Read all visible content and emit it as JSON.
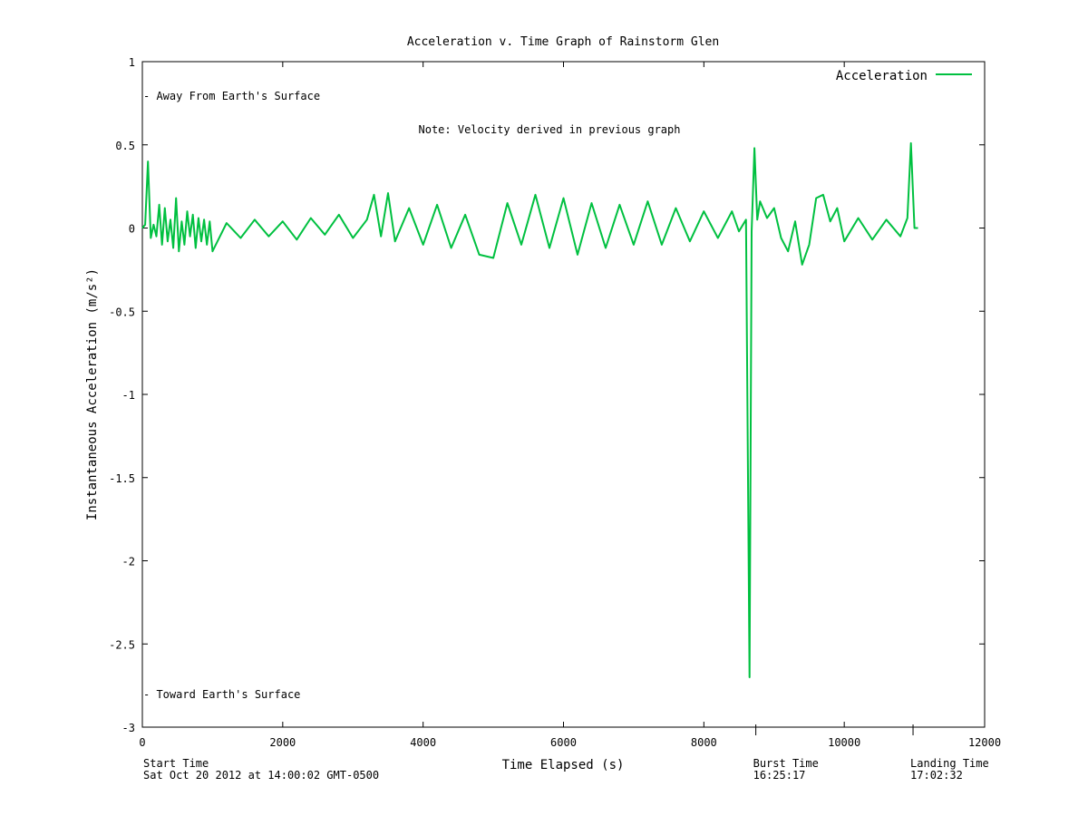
{
  "chart_data": {
    "type": "line",
    "title": "Acceleration v. Time Graph of Rainstorm Glen",
    "xlabel": "Time Elapsed (s)",
    "ylabel": "Instantaneous Acceleration (m/s²)",
    "xlim": [
      0,
      12000
    ],
    "ylim": [
      -3,
      1
    ],
    "x_ticks": [
      0,
      2000,
      4000,
      6000,
      8000,
      10000,
      12000
    ],
    "x_tick_labels": [
      "0",
      "2000",
      "4000",
      "6000",
      "8000",
      "10000",
      "12000"
    ],
    "y_ticks": [
      -3,
      -2.5,
      -2,
      -1.5,
      -1,
      -0.5,
      0,
      0.5,
      1
    ],
    "y_tick_labels": [
      "-3",
      "-2.5",
      "-2",
      "-1.5",
      "-1",
      "-0.5",
      "0",
      "0.5",
      "1"
    ],
    "grid": false,
    "legend": "top-right",
    "series_color": "#00c040",
    "series": [
      {
        "name": "Acceleration",
        "x": [
          0,
          40,
          80,
          120,
          160,
          200,
          240,
          280,
          320,
          360,
          400,
          440,
          480,
          520,
          560,
          600,
          640,
          680,
          720,
          760,
          800,
          840,
          880,
          920,
          960,
          1000,
          1200,
          1400,
          1600,
          1800,
          2000,
          2200,
          2400,
          2600,
          2800,
          3000,
          3200,
          3300,
          3400,
          3500,
          3600,
          3800,
          4000,
          4200,
          4400,
          4600,
          4800,
          5000,
          5200,
          5400,
          5600,
          5800,
          6000,
          6200,
          6400,
          6600,
          6800,
          7000,
          7200,
          7400,
          7600,
          7800,
          8000,
          8200,
          8400,
          8500,
          8600,
          8650,
          8680,
          8720,
          8760,
          8800,
          8900,
          9000,
          9100,
          9200,
          9300,
          9400,
          9500,
          9600,
          9700,
          9800,
          9900,
          10000,
          10200,
          10400,
          10600,
          10800,
          10900,
          10950,
          11000,
          11050
        ],
        "values": [
          0,
          0.02,
          0.4,
          -0.06,
          0.02,
          -0.05,
          0.14,
          -0.1,
          0.12,
          -0.08,
          0.05,
          -0.12,
          0.18,
          -0.14,
          0.04,
          -0.1,
          0.1,
          -0.05,
          0.08,
          -0.12,
          0.06,
          -0.08,
          0.05,
          -0.1,
          0.04,
          -0.14,
          0.03,
          -0.06,
          0.05,
          -0.05,
          0.04,
          -0.07,
          0.06,
          -0.04,
          0.08,
          -0.06,
          0.05,
          0.2,
          -0.05,
          0.21,
          -0.08,
          0.12,
          -0.1,
          0.14,
          -0.12,
          0.08,
          -0.16,
          -0.18,
          0.15,
          -0.1,
          0.2,
          -0.12,
          0.18,
          -0.16,
          0.15,
          -0.12,
          0.14,
          -0.1,
          0.16,
          -0.1,
          0.12,
          -0.08,
          0.1,
          -0.06,
          0.1,
          -0.02,
          0.05,
          -2.7,
          -0.02,
          0.48,
          0.05,
          0.16,
          0.06,
          0.12,
          -0.06,
          -0.14,
          0.04,
          -0.22,
          -0.1,
          0.18,
          0.2,
          0.04,
          0.12,
          -0.08,
          0.06,
          -0.07,
          0.05,
          -0.05,
          0.06,
          0.51,
          0,
          0
        ]
      }
    ],
    "annotations": {
      "away": "- Away From Earth's Surface",
      "toward": "- Toward Earth's Surface",
      "note": "Note: Velocity derived in previous graph",
      "start_label": "Start Time",
      "start_value": "Sat Oct 20 2012 at 14:00:02 GMT-0500",
      "burst_label": "Burst Time",
      "burst_value": "16:25:17",
      "burst_x": 8740,
      "landing_label": "Landing Time",
      "landing_value": "17:02:32",
      "landing_x": 10980
    }
  }
}
